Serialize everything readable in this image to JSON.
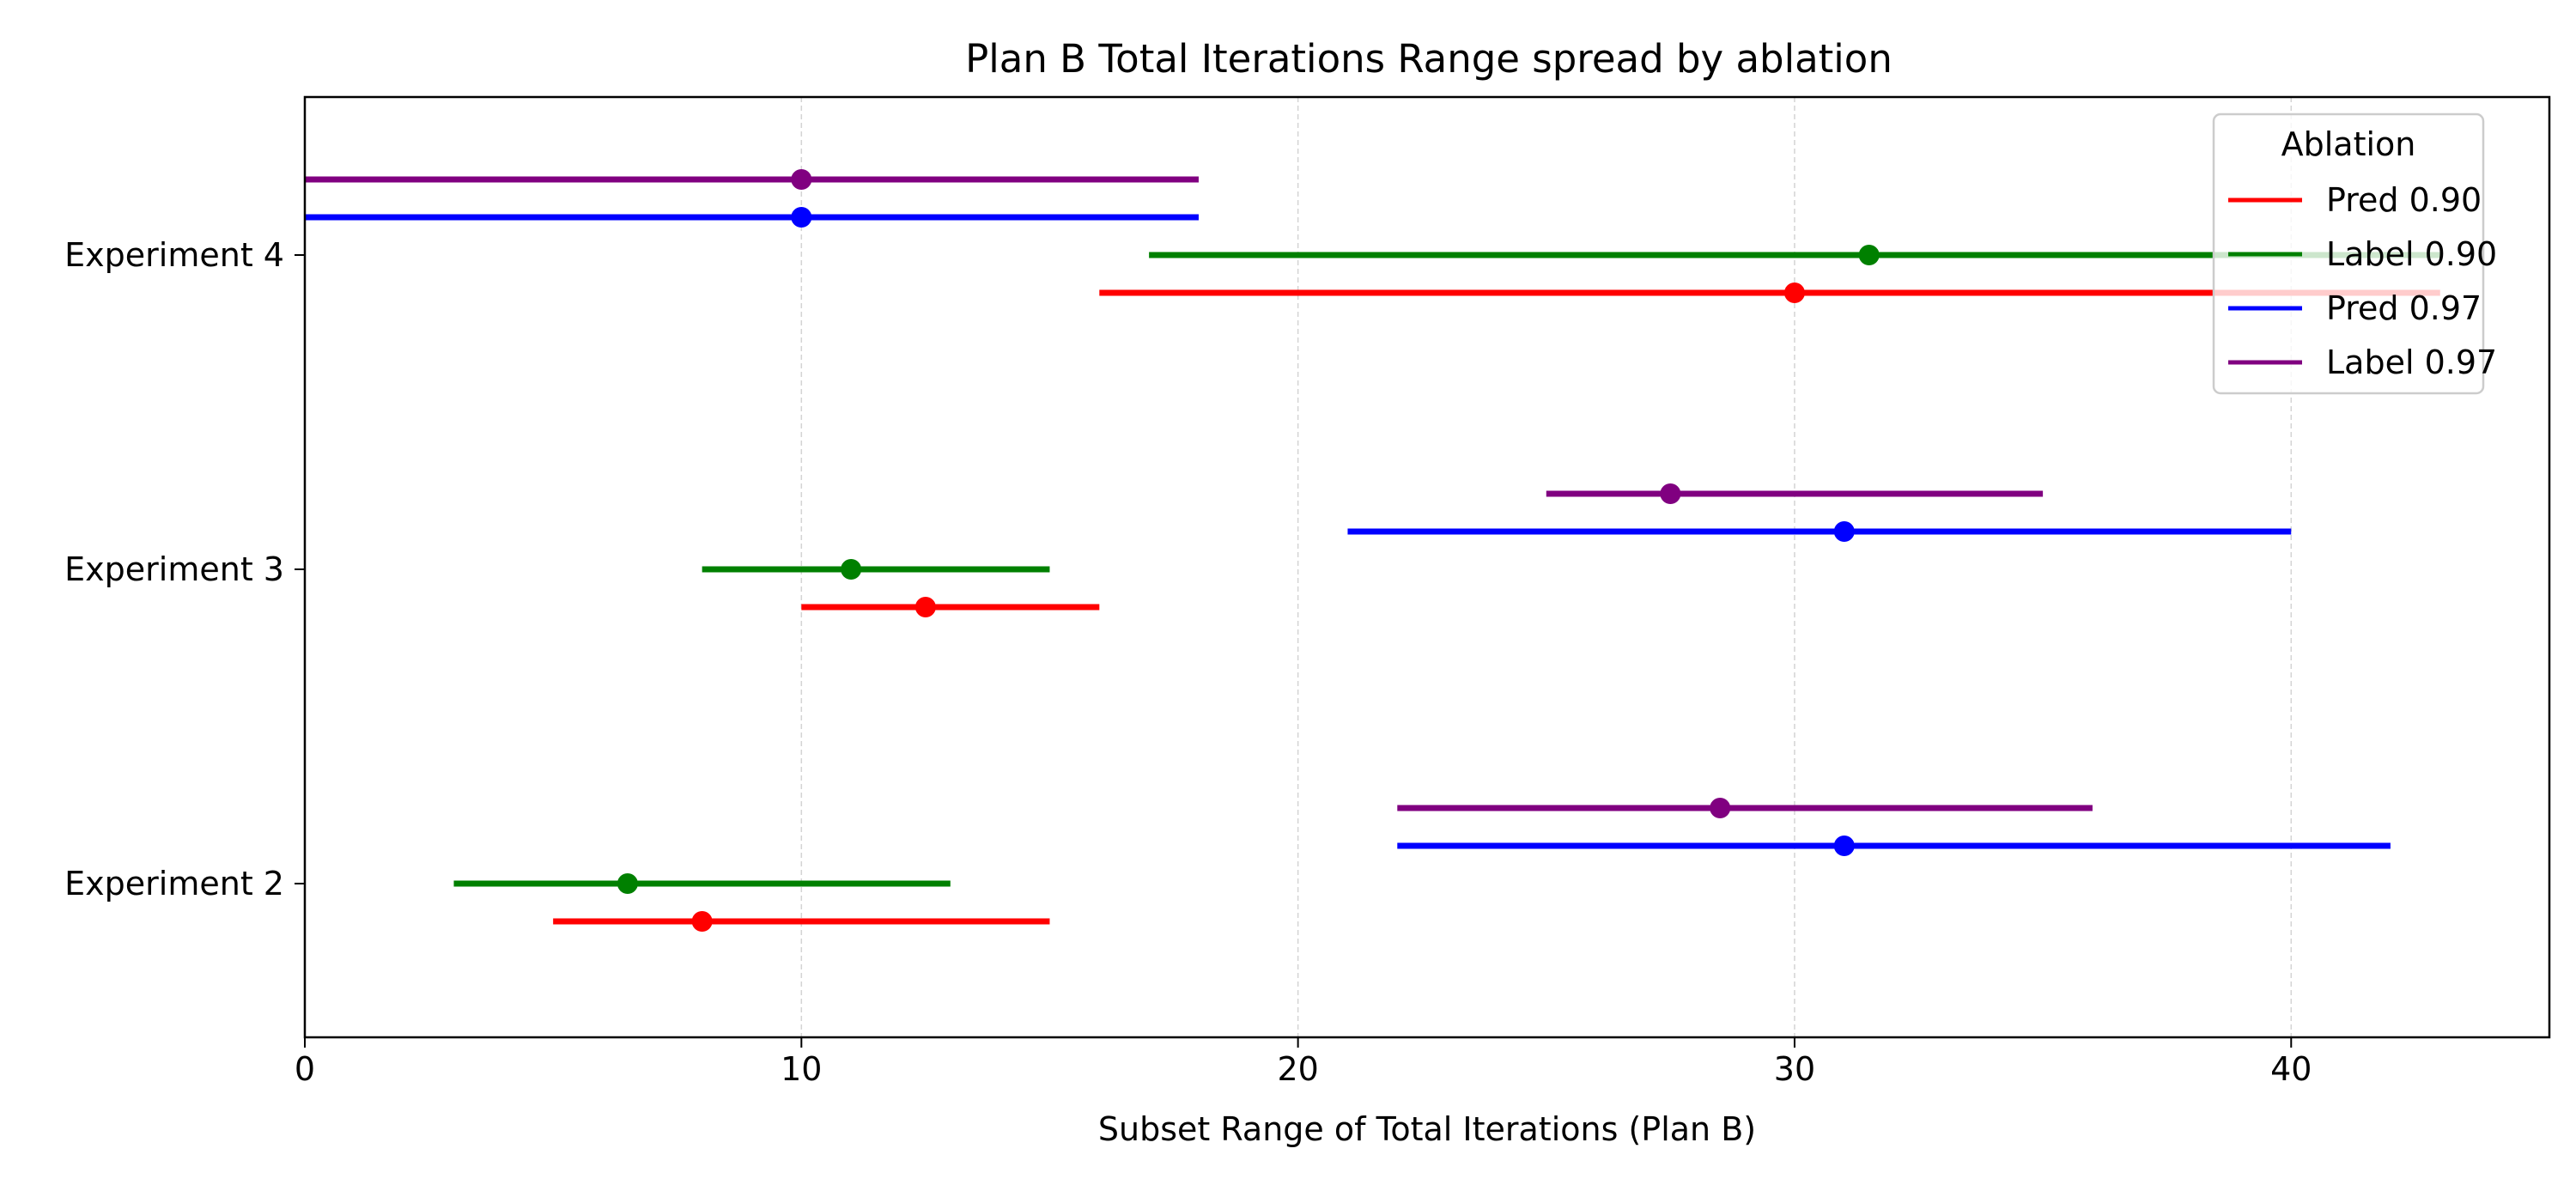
{
  "chart_data": {
    "type": "range",
    "title": "Plan B Total Iterations Range spread by ablation",
    "xlabel": "Subset Range of Total Iterations (Plan B)",
    "ylabel": "",
    "xlim": [
      0,
      45.2
    ],
    "xticks": [
      0,
      10,
      20,
      30,
      40
    ],
    "x_grid": true,
    "categories": [
      "Experiment 2",
      "Experiment 3",
      "Experiment 4"
    ],
    "legend": {
      "title": "Ablation",
      "placement": "top-right"
    },
    "series": [
      {
        "name": "Pred 0.90",
        "color": "#ff0000",
        "ranges": [
          {
            "category": "Experiment 2",
            "low": 5,
            "high": 15,
            "center": 8
          },
          {
            "category": "Experiment 3",
            "low": 10,
            "high": 16,
            "center": 12.5
          },
          {
            "category": "Experiment 4",
            "low": 16,
            "high": 43,
            "center": 30
          }
        ]
      },
      {
        "name": "Label 0.90",
        "color": "#008000",
        "ranges": [
          {
            "category": "Experiment 2",
            "low": 3,
            "high": 13,
            "center": 6.5
          },
          {
            "category": "Experiment 3",
            "low": 8,
            "high": 15,
            "center": 11
          },
          {
            "category": "Experiment 4",
            "low": 17,
            "high": 43,
            "center": 31.5
          }
        ]
      },
      {
        "name": "Pred 0.97",
        "color": "#0000ff",
        "ranges": [
          {
            "category": "Experiment 2",
            "low": 22,
            "high": 42,
            "center": 31
          },
          {
            "category": "Experiment 3",
            "low": 21,
            "high": 40,
            "center": 31
          },
          {
            "category": "Experiment 4",
            "low": 0,
            "high": 18,
            "center": 10
          }
        ]
      },
      {
        "name": "Label 0.97",
        "color": "#800080",
        "ranges": [
          {
            "category": "Experiment 2",
            "low": 22,
            "high": 36,
            "center": 28.5
          },
          {
            "category": "Experiment 3",
            "low": 25,
            "high": 35,
            "center": 27.5
          },
          {
            "category": "Experiment 4",
            "low": 0,
            "high": 18,
            "center": 10
          }
        ]
      }
    ]
  }
}
